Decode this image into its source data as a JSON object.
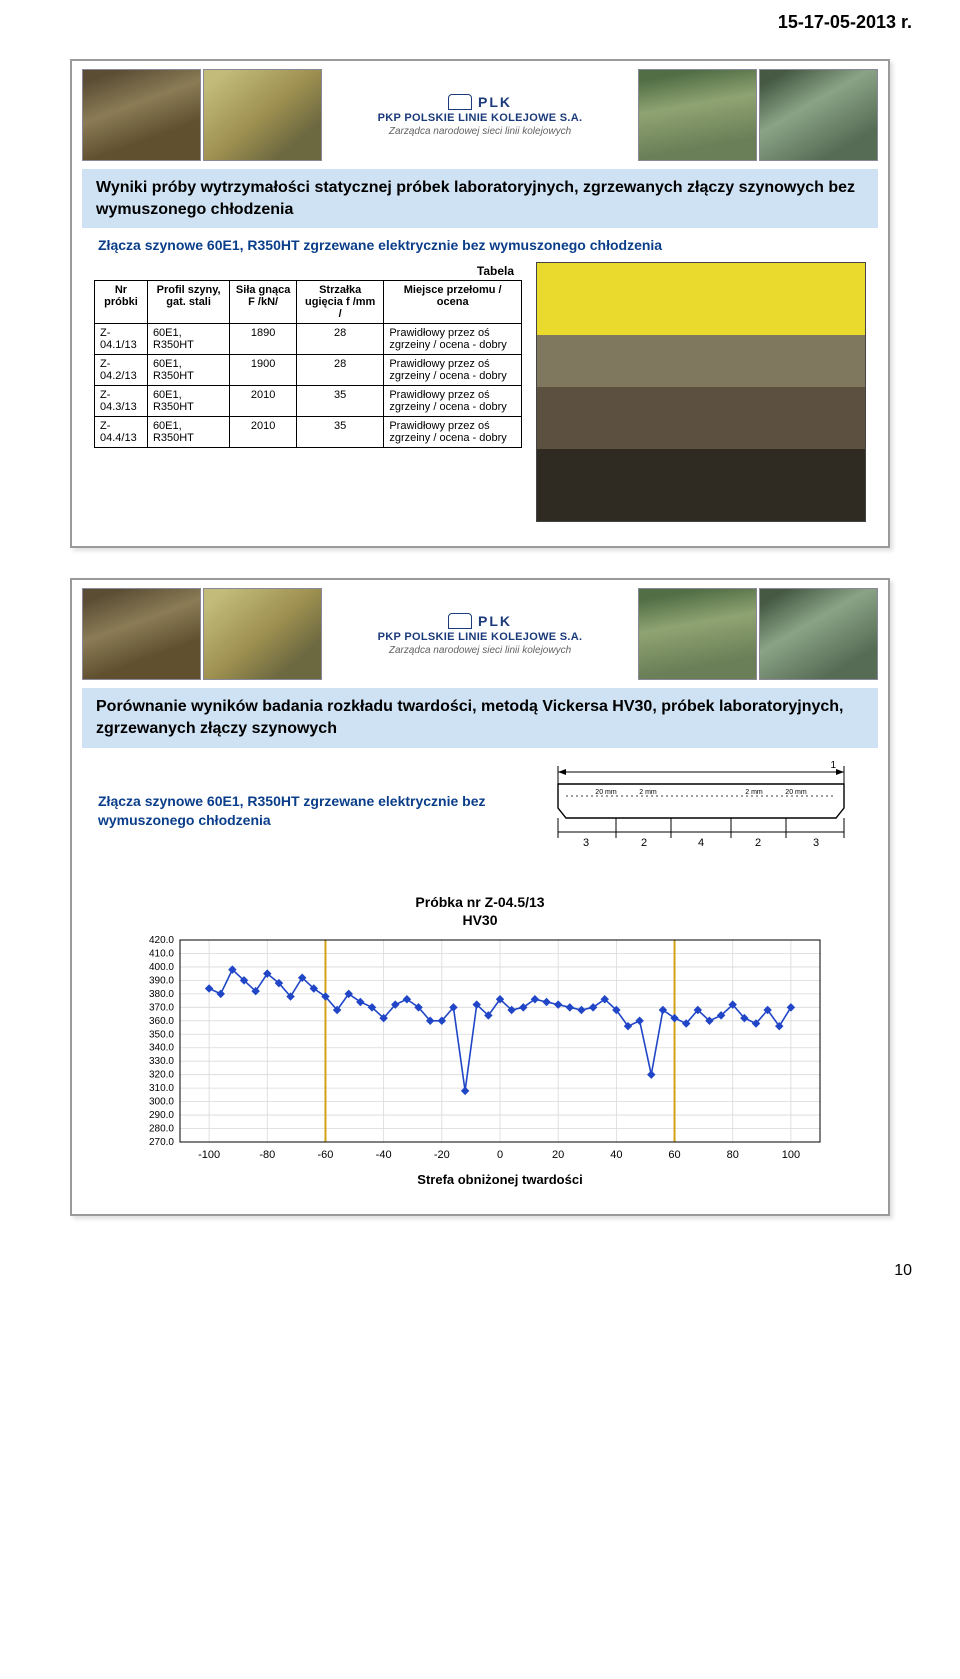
{
  "header_date": "15-17-05-2013 r.",
  "page_number": "10",
  "banner": {
    "company_code": "PLK",
    "company": "PKP POLSKIE LINIE KOLEJOWE S.A.",
    "tagline": "Zarządca narodowej sieci linii kolejowych"
  },
  "slide1": {
    "title": "Wyniki próby wytrzymałości statycznej próbek laboratoryjnych, zgrzewanych złączy szynowych bez wymuszonego chłodzenia",
    "subtitle": "Złącza szynowe 60E1, R350HT zgrzewane elektrycznie bez wymuszonego chłodzenia",
    "table_caption": "Tabela",
    "columns": [
      "Nr próbki",
      "Profil szyny, gat. stali",
      "Siła gnąca F /kN/",
      "Strzałka ugięcia f /mm /",
      "Miejsce przełomu / ocena"
    ],
    "rows": [
      [
        "Z-04.1/13",
        "60E1, R350HT",
        "1890",
        "28",
        "Prawidłowy przez oś zgrzeiny / ocena - dobry"
      ],
      [
        "Z-04.2/13",
        "60E1, R350HT",
        "1900",
        "28",
        "Prawidłowy przez oś zgrzeiny / ocena - dobry"
      ],
      [
        "Z-04.3/13",
        "60E1, R350HT",
        "2010",
        "35",
        "Prawidłowy przez oś zgrzeiny / ocena - dobry"
      ],
      [
        "Z-04.4/13",
        "60E1, R350HT",
        "2010",
        "35",
        "Prawidłowy przez oś zgrzeiny / ocena - dobry"
      ]
    ]
  },
  "slide2": {
    "title": "Porównanie wyników badania rozkładu twardości, metodą Vickersa HV30, próbek laboratoryjnych, zgrzewanych złączy szynowych",
    "title_prefix": "Porównanie wyników badania rozkładu twardości, metodą Vickersa HV30, próbek ",
    "title_bold_tail": "laboratoryjnych, zgrzewanych złączy szynowych",
    "subtitle": "Złącza szynowe 60E1, R350HT zgrzewane elektrycznie bez wymuszonego chłodzenia",
    "diagram": {
      "callout_1": "1",
      "dims_left": [
        "20 mm",
        "2 mm"
      ],
      "dims_right": [
        "2 mm",
        "20 mm"
      ],
      "bottom_labels": [
        "3",
        "2",
        "4",
        "2",
        "3"
      ]
    },
    "chart": {
      "title_line1": "Próbka nr Z-04.5/13",
      "title_line2": "HV30",
      "type": "line",
      "background_color": "#ffffff",
      "grid_color": "#d9d9d9",
      "line_color": "#2046c7",
      "marker_color": "#2046c7",
      "marker_size": 3,
      "xlim": [
        -110,
        110
      ],
      "ylim": [
        270,
        420
      ],
      "xticks": [
        -100,
        -80,
        -60,
        -40,
        -20,
        0,
        20,
        40,
        60,
        80,
        100
      ],
      "yticks": [
        270,
        280,
        290,
        300,
        310,
        320,
        330,
        340,
        350,
        360,
        370,
        380,
        390,
        400,
        410,
        420
      ],
      "xlabel": "Strefa obniżonej twardości",
      "ref_lines_x": [
        -60,
        60
      ],
      "ref_line_color": "#d4a017",
      "series_x": [
        -100,
        -96,
        -92,
        -88,
        -84,
        -80,
        -76,
        -72,
        -68,
        -64,
        -60,
        -56,
        -52,
        -48,
        -44,
        -40,
        -36,
        -32,
        -28,
        -24,
        -20,
        -16,
        -12,
        -8,
        -4,
        0,
        4,
        8,
        12,
        16,
        20,
        24,
        28,
        32,
        36,
        40,
        44,
        48,
        52,
        56,
        60,
        64,
        68,
        72,
        76,
        80,
        84,
        88,
        92,
        96,
        100
      ],
      "series_y": [
        384,
        380,
        398,
        390,
        382,
        395,
        388,
        378,
        392,
        384,
        378,
        368,
        380,
        374,
        370,
        362,
        372,
        376,
        370,
        360,
        360,
        370,
        308,
        372,
        364,
        376,
        368,
        370,
        376,
        374,
        372,
        370,
        368,
        370,
        376,
        368,
        356,
        360,
        320,
        368,
        362,
        358,
        368,
        360,
        364,
        372,
        362,
        358,
        368,
        356,
        370
      ]
    }
  }
}
